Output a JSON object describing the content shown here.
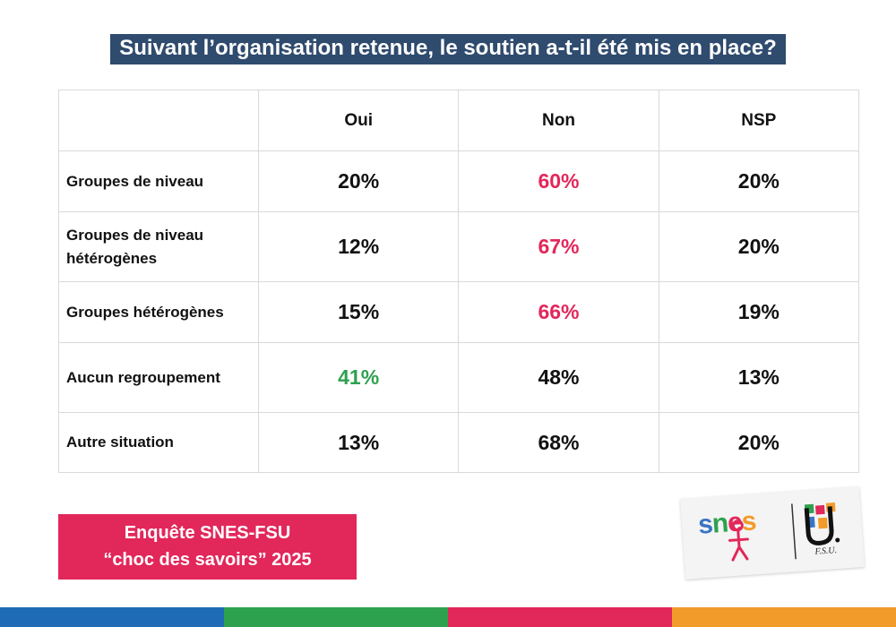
{
  "title": "Suivant l’organisation retenue, le soutien a-t-il été mis en place?",
  "table": {
    "headers": [
      "",
      "Oui",
      "Non",
      "NSP"
    ],
    "rows": [
      {
        "label": "Groupes de niveau",
        "oui": "20%",
        "non": "60%",
        "nsp": "20%"
      },
      {
        "label": "Groupes de niveau hétérogènes",
        "oui": "12%",
        "non": "67%",
        "nsp": "20%"
      },
      {
        "label": "Groupes hétérogènes",
        "oui": "15%",
        "non": "66%",
        "nsp": "19%"
      },
      {
        "label": "Aucun regroupement",
        "oui": "41%",
        "non": "48%",
        "nsp": "13%"
      },
      {
        "label": "Autre situation",
        "oui": "13%",
        "non": "68%",
        "nsp": "20%"
      }
    ]
  },
  "banner": {
    "line1": "Enquête SNES-FSU",
    "line2": "“choc des savoirs” 2025"
  },
  "logo": {
    "wordmark": "snes",
    "fsu": "F.S.U."
  },
  "colors": {
    "title_bg": "#2f4b6e",
    "highlight_red": "#e2275a",
    "highlight_green": "#2ea14f",
    "stripes": [
      "#1f6bb5",
      "#2ea14f",
      "#e2275a",
      "#f29b2a"
    ]
  }
}
